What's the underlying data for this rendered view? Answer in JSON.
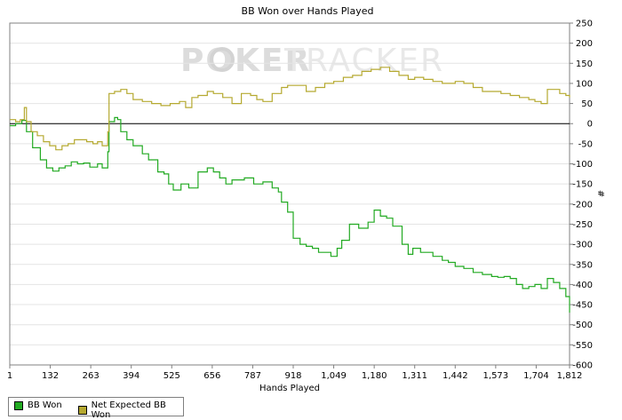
{
  "chart_data": {
    "type": "line",
    "title": "BB Won over Hands Played",
    "xlabel": "Hands Played",
    "ylabel": "#",
    "watermark_left": "POKER",
    "watermark_right": "TRACKER",
    "xlim": [
      1,
      1812
    ],
    "ylim": [
      -600,
      250
    ],
    "x_ticks": [
      "1",
      "132",
      "263",
      "394",
      "525",
      "656",
      "787",
      "918",
      "1,049",
      "1,180",
      "1,311",
      "1,442",
      "1,573",
      "1,704",
      "1,812"
    ],
    "x_tick_values": [
      1,
      132,
      263,
      394,
      525,
      656,
      787,
      918,
      1049,
      1180,
      1311,
      1442,
      1573,
      1704,
      1812
    ],
    "y_ticks": [
      250,
      200,
      150,
      100,
      50,
      0,
      -50,
      -100,
      -150,
      -200,
      -250,
      -300,
      -350,
      -400,
      -450,
      -500,
      -550,
      -600
    ],
    "grid": "horizontal",
    "zero_line": true,
    "legend_position": "bottom-left",
    "series": [
      {
        "name": "BB Won",
        "color": "#22aa22",
        "x": [
          1,
          20,
          40,
          55,
          75,
          100,
          120,
          140,
          160,
          180,
          200,
          220,
          240,
          260,
          285,
          300,
          318,
          322,
          340,
          350,
          360,
          380,
          400,
          430,
          450,
          480,
          500,
          515,
          530,
          555,
          580,
          610,
          640,
          660,
          680,
          700,
          720,
          760,
          790,
          820,
          850,
          870,
          880,
          900,
          918,
          940,
          960,
          980,
          1000,
          1040,
          1060,
          1075,
          1100,
          1130,
          1160,
          1180,
          1200,
          1220,
          1240,
          1270,
          1290,
          1305,
          1330,
          1370,
          1400,
          1420,
          1442,
          1470,
          1500,
          1530,
          1560,
          1580,
          1600,
          1620,
          1640,
          1660,
          1680,
          1700,
          1720,
          1740,
          1760,
          1780,
          1800,
          1812
        ],
        "values": [
          -5,
          0,
          8,
          -20,
          -60,
          -90,
          -110,
          -118,
          -110,
          -105,
          -95,
          -100,
          -98,
          -108,
          -100,
          -110,
          -70,
          5,
          15,
          10,
          -20,
          -40,
          -55,
          -75,
          -90,
          -120,
          -125,
          -150,
          -165,
          -150,
          -160,
          -120,
          -110,
          -120,
          -135,
          -150,
          -140,
          -135,
          -150,
          -145,
          -160,
          -170,
          -195,
          -220,
          -285,
          -300,
          -305,
          -310,
          -320,
          -330,
          -310,
          -290,
          -250,
          -260,
          -245,
          -215,
          -230,
          -235,
          -255,
          -300,
          -325,
          -310,
          -320,
          -330,
          -340,
          -345,
          -355,
          -360,
          -370,
          -375,
          -380,
          -382,
          -380,
          -385,
          -400,
          -410,
          -405,
          -400,
          -410,
          -385,
          -395,
          -410,
          -430,
          -470
        ]
      },
      {
        "name": "Net Expected BB Won",
        "color": "#b5a930",
        "x": [
          1,
          20,
          35,
          48,
          55,
          70,
          90,
          110,
          130,
          150,
          170,
          190,
          210,
          230,
          250,
          270,
          285,
          300,
          318,
          322,
          340,
          360,
          380,
          400,
          430,
          460,
          490,
          520,
          550,
          570,
          590,
          610,
          640,
          660,
          690,
          720,
          750,
          780,
          800,
          820,
          850,
          880,
          900,
          930,
          960,
          990,
          1020,
          1049,
          1080,
          1110,
          1140,
          1170,
          1200,
          1230,
          1260,
          1290,
          1311,
          1340,
          1370,
          1400,
          1442,
          1470,
          1500,
          1530,
          1560,
          1590,
          1620,
          1650,
          1680,
          1700,
          1720,
          1740,
          1760,
          1780,
          1800,
          1812
        ],
        "values": [
          10,
          5,
          10,
          40,
          5,
          -20,
          -30,
          -45,
          -55,
          -65,
          -55,
          -50,
          -40,
          -40,
          -45,
          -50,
          -45,
          -55,
          -20,
          75,
          80,
          85,
          75,
          60,
          55,
          50,
          45,
          50,
          55,
          40,
          65,
          70,
          80,
          75,
          65,
          50,
          75,
          70,
          60,
          55,
          75,
          90,
          95,
          95,
          80,
          90,
          100,
          105,
          115,
          120,
          130,
          135,
          140,
          130,
          120,
          110,
          115,
          110,
          105,
          100,
          105,
          100,
          90,
          80,
          80,
          75,
          70,
          65,
          60,
          55,
          50,
          85,
          85,
          75,
          70,
          65
        ]
      }
    ]
  }
}
